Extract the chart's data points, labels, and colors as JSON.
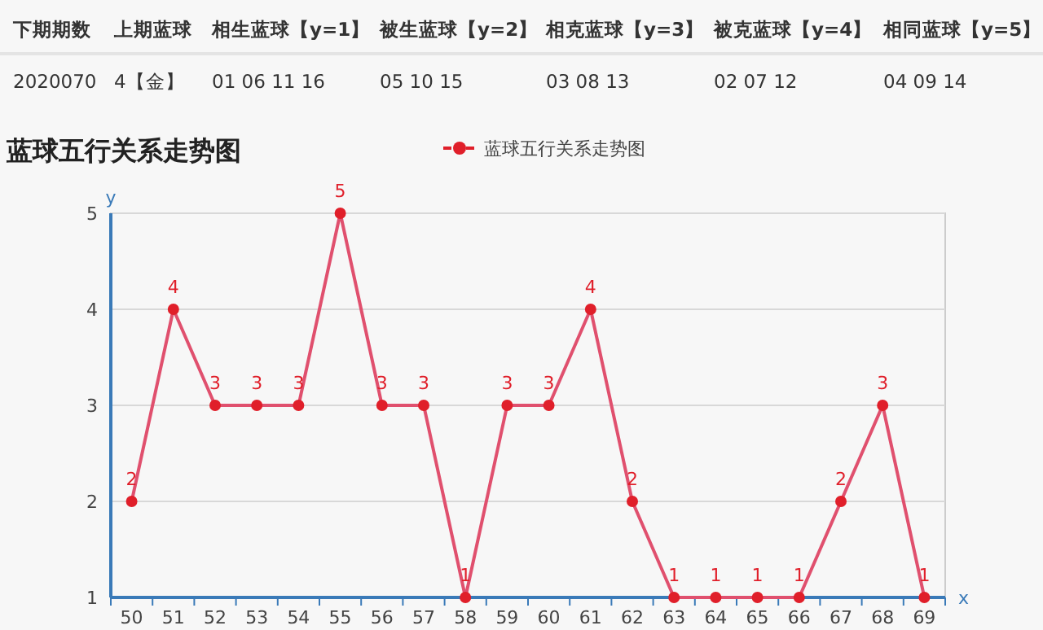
{
  "chart_data": [
    {
      "type": "other",
      "annotations": [
        "下期期数",
        "上期蓝球",
        "相生蓝球【y=1】",
        "被生蓝球【y=2】",
        "相克蓝球【y=3】",
        "被克蓝球【y=4】",
        "相同蓝球【y=5】",
        "2020070",
        "4【金】",
        "01 06 11 16",
        "05 10 15",
        "03 08 13",
        "02 07 12",
        "04 09 14"
      ]
    },
    {
      "type": "line",
      "title": "蓝球五行关系走势图",
      "xlabel": "x",
      "ylabel": "y",
      "categories": [
        "50",
        "51",
        "52",
        "53",
        "54",
        "55",
        "56",
        "57",
        "58",
        "59",
        "60",
        "61",
        "62",
        "63",
        "64",
        "65",
        "66",
        "67",
        "68",
        "69"
      ],
      "series": [
        {
          "name": "蓝球五行关系走势图",
          "color": "#e01f2a",
          "values": [
            2,
            4,
            3,
            3,
            3,
            5,
            3,
            3,
            1,
            3,
            3,
            4,
            2,
            1,
            1,
            1,
            1,
            2,
            3,
            1
          ]
        }
      ],
      "ylim": [
        1,
        5
      ],
      "yticks": [
        1,
        2,
        3,
        4,
        5
      ],
      "grid": "y",
      "legend": "top",
      "marker": "circle",
      "line_style": "solid",
      "data_labels": true
    }
  ]
}
